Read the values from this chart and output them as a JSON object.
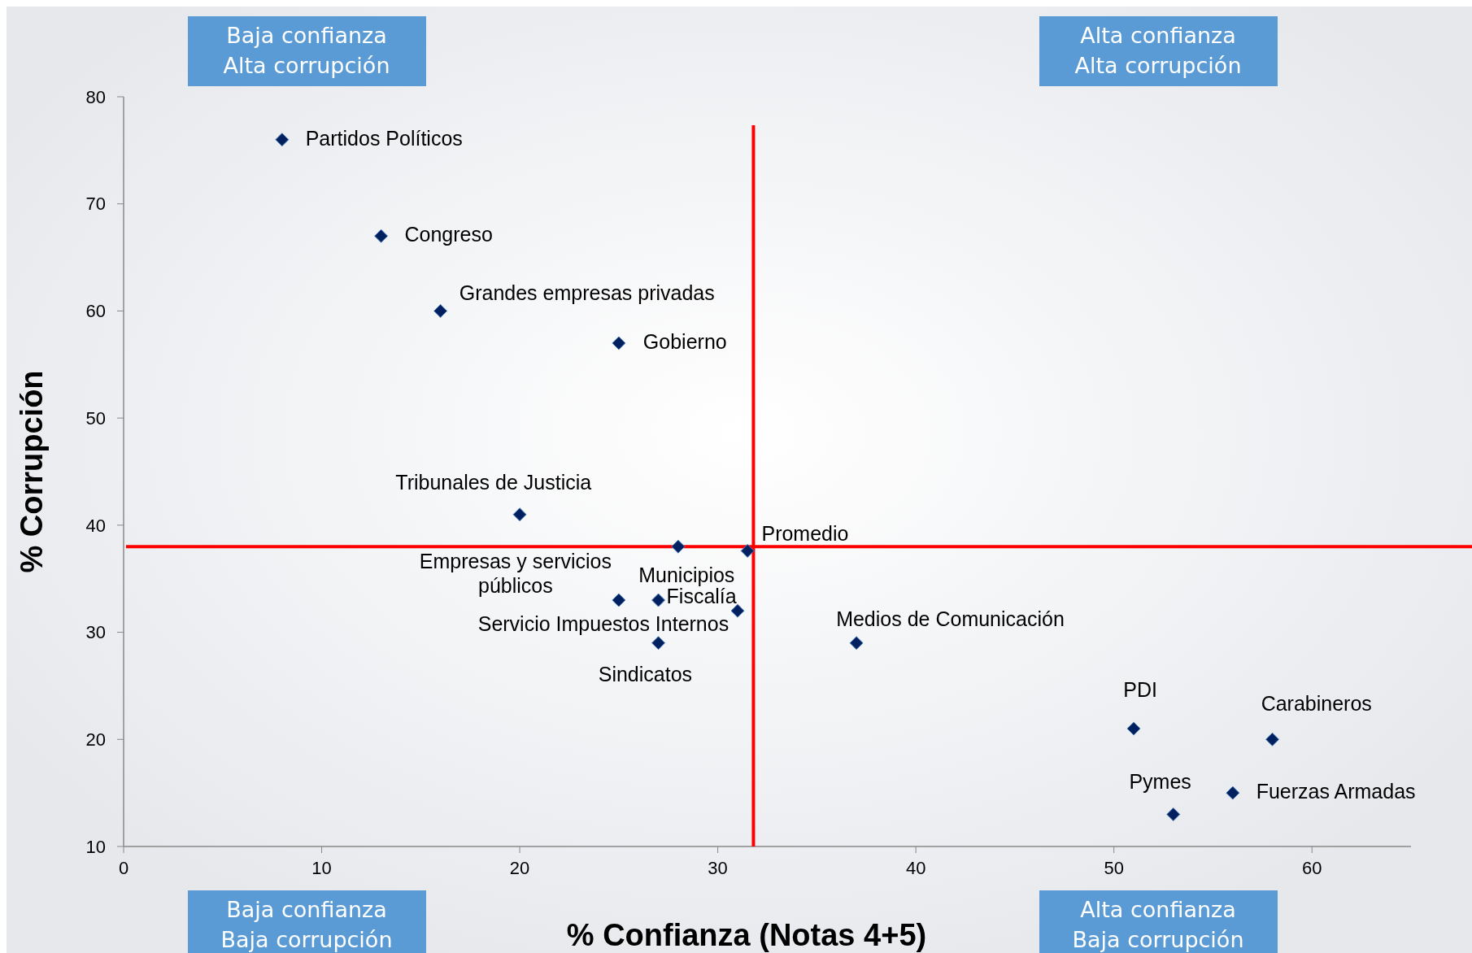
{
  "chart_data": {
    "type": "scatter",
    "xlabel": "% Confianza (Notas 4+5)",
    "ylabel": "% Corrupción",
    "series": [
      {
        "color": "#002060",
        "x": [
          8,
          13,
          16,
          25,
          20,
          28,
          31.5,
          25,
          27,
          31,
          27,
          37,
          51,
          58,
          53,
          56
        ],
        "values": [
          76,
          67,
          60,
          57,
          41,
          38,
          37.6,
          33,
          33,
          32,
          29,
          29,
          21,
          20,
          13,
          15
        ]
      }
    ],
    "marker": "diamond",
    "xlim": [
      0,
      65
    ],
    "xticks": [
      0,
      10,
      20,
      30,
      40,
      50,
      60
    ],
    "ylim": [
      10,
      80
    ],
    "yticks": [
      10,
      20,
      30,
      40,
      50,
      60,
      70,
      80
    ],
    "grid": false,
    "ref_lines": [
      {
        "axis": "x",
        "value": 31.8,
        "color": "#ff0000"
      },
      {
        "axis": "y",
        "value": 38,
        "color": "#ff0000"
      }
    ],
    "annotations": [
      {
        "text": "Partidos Políticos",
        "x": 8,
        "y": 76
      },
      {
        "text": "Congreso",
        "x": 13,
        "y": 67
      },
      {
        "text": "Grandes empresas privadas",
        "x": 16,
        "y": 60
      },
      {
        "text": "Gobierno",
        "x": 25,
        "y": 57
      },
      {
        "text": "Tribunales de Justicia",
        "x": 20,
        "y": 41
      },
      {
        "text": "Municipios",
        "x": 28,
        "y": 38
      },
      {
        "text": "Promedio",
        "x": 31.5,
        "y": 37.6
      },
      {
        "text": "Empresas y servicios\npúblicos",
        "x": 25,
        "y": 33
      },
      {
        "text": "Fiscalía",
        "x": 27,
        "y": 33
      },
      {
        "text": "Servicio Impuestos Internos",
        "x": 31,
        "y": 32
      },
      {
        "text": "Sindicatos",
        "x": 27,
        "y": 29
      },
      {
        "text": "Medios de Comunicación",
        "x": 37,
        "y": 29
      },
      {
        "text": "PDI",
        "x": 51,
        "y": 21
      },
      {
        "text": "Carabineros",
        "x": 58,
        "y": 20
      },
      {
        "text": "Pymes",
        "x": 53,
        "y": 13
      },
      {
        "text": "Fuerzas Armadas",
        "x": 56,
        "y": 15
      },
      "Baja confianza\nAlta corrupción",
      "Alta confianza\nAlta corrupción",
      "Baja confianza\nBaja corrupción",
      "Alta confianza\nBaja corrupción"
    ]
  }
}
